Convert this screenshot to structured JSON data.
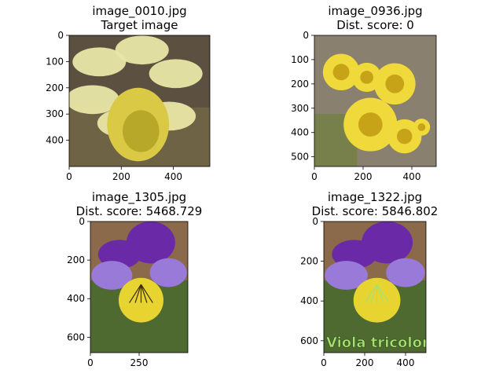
{
  "chart_data": [
    {
      "type": "image",
      "title_lines": [
        "image_0010.jpg",
        "Target image"
      ],
      "xlim": [
        0,
        540
      ],
      "ylim": [
        500,
        0
      ],
      "xticks": [
        0,
        200,
        400
      ],
      "yticks": [
        0,
        100,
        200,
        300,
        400
      ],
      "content": "daffodil-photo",
      "colors": [
        "#5c5140",
        "#7a7048",
        "#e8e6a6",
        "#d9c944",
        "#b8a82a"
      ]
    },
    {
      "type": "image",
      "title_lines": [
        "image_0936.jpg",
        "Dist. score: 0"
      ],
      "xlim": [
        0,
        500
      ],
      "ylim": [
        540,
        0
      ],
      "xticks": [
        0,
        200,
        400
      ],
      "yticks": [
        0,
        100,
        200,
        300,
        400,
        500
      ],
      "content": "coltsfoot-photo",
      "colors": [
        "#8a8070",
        "#6f7f3a",
        "#f0d93a",
        "#d9b520",
        "#c7a318"
      ]
    },
    {
      "type": "image",
      "title_lines": [
        "image_1305.jpg",
        "Dist. score: 5468.729"
      ],
      "xlim": [
        0,
        500
      ],
      "ylim": [
        680,
        0
      ],
      "xticks": [
        0,
        250
      ],
      "yticks": [
        0,
        200,
        400,
        600
      ],
      "content": "viola-photo",
      "colors": [
        "#8a6a4a",
        "#3e6a2a",
        "#6a2aa8",
        "#9a7ad8",
        "#e8d430",
        "#3a2a10"
      ]
    },
    {
      "type": "image",
      "title_lines": [
        "image_1322.jpg",
        "Dist. score: 5846.802"
      ],
      "xlim": [
        0,
        500
      ],
      "ylim": [
        660,
        0
      ],
      "xticks": [
        0,
        200,
        400
      ],
      "yticks": [
        0,
        200,
        400,
        600
      ],
      "content": "viola-photo-caption",
      "caption": "Viola tricolor",
      "colors": [
        "#8a6a4a",
        "#3e6a2a",
        "#6a2aa8",
        "#9a7ad8",
        "#e8d430",
        "#a8e070"
      ]
    }
  ]
}
